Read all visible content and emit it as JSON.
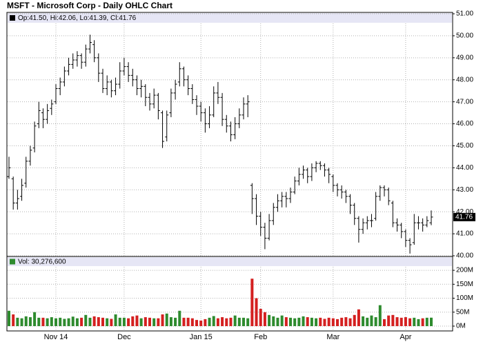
{
  "chart_data": {
    "type": "ohlc",
    "title": "MSFT - Microsoft Corp - Daily OHLC Chart",
    "legend": "Op:41.50, Hi:42.06, Lo:41.39, Cl:41.76",
    "volume_legend": "Vol: 30,276,600",
    "categories": [
      null,
      null,
      null,
      null,
      null,
      null,
      null,
      null,
      null,
      null,
      null,
      "Nov 14",
      null,
      null,
      null,
      null,
      null,
      null,
      null,
      null,
      null,
      null,
      null,
      null,
      null,
      null,
      null,
      "Dec",
      null,
      null,
      null,
      null,
      null,
      null,
      null,
      null,
      null,
      null,
      null,
      null,
      null,
      null,
      null,
      null,
      null,
      "Jan 15",
      null,
      null,
      null,
      null,
      null,
      null,
      null,
      null,
      null,
      null,
      null,
      null,
      null,
      "Feb",
      null,
      null,
      null,
      null,
      null,
      null,
      null,
      null,
      null,
      null,
      null,
      null,
      null,
      null,
      null,
      null,
      "Mar",
      null,
      null,
      null,
      null,
      null,
      null,
      null,
      null,
      null,
      null,
      null,
      null,
      null,
      null,
      null,
      null,
      "Apr",
      null,
      null,
      null,
      null,
      null,
      null
    ],
    "open": [
      43.6,
      43.5,
      42.4,
      42.7,
      43.3,
      44.3,
      44.9,
      46.0,
      46.5,
      46.2,
      46.7,
      47.0,
      47.6,
      47.9,
      48.4,
      48.7,
      48.9,
      49.1,
      48.8,
      49.4,
      49.6,
      49.0,
      48.3,
      47.6,
      47.9,
      47.5,
      47.8,
      48.4,
      48.6,
      48.2,
      48.0,
      47.6,
      47.7,
      47.2,
      46.9,
      47.3,
      46.5,
      45.4,
      46.5,
      47.4,
      47.9,
      48.5,
      48.0,
      47.6,
      47.1,
      46.8,
      46.5,
      46.0,
      46.4,
      47.4,
      47.2,
      46.2,
      45.9,
      45.5,
      46.0,
      46.4,
      46.9,
      43.2,
      42.6,
      41.8,
      41.3,
      40.8,
      41.6,
      42.2,
      42.5,
      42.7,
      42.6,
      42.9,
      43.4,
      43.7,
      43.9,
      43.6,
      44.0,
      44.2,
      44.1,
      43.9,
      43.6,
      43.2,
      43.0,
      42.9,
      42.7,
      42.3,
      41.7,
      41.2,
      41.5,
      41.6,
      41.7,
      42.7,
      43.1,
      43.0,
      42.4,
      41.5,
      41.4,
      41.1,
      40.7,
      40.6,
      41.5,
      41.5,
      41.4,
      41.5
    ],
    "high": [
      44.5,
      43.6,
      43.0,
      43.5,
      44.5,
      45.0,
      46.1,
      47.0,
      46.7,
      46.9,
      47.1,
      47.8,
      48.1,
      48.6,
      49.0,
      49.2,
      49.3,
      49.2,
      49.6,
      50.05,
      49.8,
      49.2,
      48.5,
      48.2,
      48.0,
      48.1,
      48.8,
      49.0,
      48.8,
      48.5,
      48.2,
      48.0,
      47.8,
      47.4,
      47.6,
      47.4,
      46.6,
      46.6,
      47.6,
      48.0,
      48.8,
      48.6,
      48.2,
      47.8,
      47.3,
      47.0,
      46.7,
      46.8,
      47.7,
      47.9,
      47.4,
      46.4,
      46.1,
      46.3,
      46.7,
      47.2,
      47.3,
      43.3,
      42.8,
      42.0,
      41.5,
      41.9,
      42.4,
      42.8,
      42.9,
      42.9,
      43.1,
      43.6,
      44.0,
      44.1,
      44.0,
      44.2,
      44.3,
      44.3,
      44.2,
      44.0,
      43.7,
      43.3,
      43.2,
      43.0,
      42.8,
      42.4,
      41.8,
      41.7,
      41.8,
      41.9,
      42.9,
      43.2,
      43.2,
      43.1,
      42.5,
      41.7,
      41.5,
      41.2,
      40.8,
      41.9,
      41.8,
      41.7,
      41.8,
      42.06
    ],
    "low": [
      43.5,
      42.1,
      42.1,
      42.5,
      43.1,
      44.1,
      44.7,
      45.8,
      45.8,
      46.0,
      46.4,
      46.9,
      47.3,
      47.7,
      48.2,
      48.5,
      48.6,
      48.5,
      48.6,
      49.2,
      48.8,
      47.9,
      47.4,
      47.3,
      47.2,
      47.3,
      47.6,
      48.2,
      47.9,
      47.7,
      47.3,
      47.2,
      46.8,
      46.6,
      46.7,
      46.2,
      44.9,
      45.2,
      46.3,
      47.1,
      47.7,
      47.7,
      47.3,
      46.9,
      46.4,
      46.1,
      45.6,
      45.8,
      46.3,
      46.9,
      45.9,
      45.6,
      45.2,
      45.3,
      45.8,
      46.2,
      46.3,
      41.9,
      41.4,
      40.9,
      40.3,
      40.7,
      41.4,
      42.0,
      42.2,
      42.2,
      42.4,
      42.8,
      43.2,
      43.5,
      43.3,
      43.4,
      43.8,
      43.9,
      43.6,
      43.3,
      42.9,
      42.7,
      42.6,
      42.4,
      41.9,
      41.4,
      40.6,
      41.0,
      41.2,
      41.3,
      41.6,
      42.5,
      42.7,
      42.3,
      41.3,
      41.1,
      40.8,
      40.4,
      40.1,
      40.5,
      41.2,
      41.1,
      41.3,
      41.39
    ],
    "close": [
      44.0,
      42.4,
      42.6,
      43.2,
      44.3,
      44.8,
      45.9,
      46.6,
      46.2,
      46.6,
      46.9,
      47.6,
      47.9,
      48.4,
      48.7,
      48.9,
      49.1,
      48.8,
      49.4,
      49.7,
      49.0,
      48.3,
      47.6,
      47.9,
      47.5,
      47.8,
      48.4,
      48.6,
      48.2,
      48.0,
      47.6,
      47.7,
      47.2,
      46.9,
      47.3,
      46.6,
      45.2,
      46.4,
      47.4,
      47.8,
      48.5,
      48.0,
      47.6,
      47.1,
      46.8,
      46.5,
      46.0,
      46.4,
      47.4,
      47.2,
      46.2,
      45.9,
      45.5,
      46.0,
      46.4,
      46.9,
      47.0,
      42.6,
      41.8,
      41.3,
      40.8,
      41.6,
      42.2,
      42.5,
      42.7,
      42.6,
      42.9,
      43.4,
      43.7,
      43.9,
      43.6,
      44.0,
      44.2,
      44.1,
      43.9,
      43.7,
      43.2,
      43.0,
      42.9,
      42.7,
      42.3,
      41.7,
      41.2,
      41.5,
      41.6,
      41.6,
      42.7,
      43.1,
      43.0,
      42.5,
      41.5,
      41.4,
      41.1,
      40.7,
      40.5,
      41.5,
      41.5,
      41.4,
      41.6,
      41.76
    ],
    "volume": [
      55,
      42,
      30,
      28,
      35,
      32,
      50,
      30,
      30,
      28,
      32,
      28,
      30,
      26,
      28,
      34,
      28,
      30,
      40,
      30,
      35,
      32,
      30,
      28,
      26,
      42,
      30,
      30,
      28,
      35,
      38,
      28,
      32,
      30,
      28,
      28,
      42,
      45,
      32,
      30,
      55,
      30,
      30,
      28,
      22,
      20,
      25,
      30,
      36,
      28,
      32,
      28,
      30,
      38,
      30,
      30,
      28,
      170,
      100,
      62,
      50,
      40,
      35,
      30,
      38,
      32,
      30,
      28,
      30,
      35,
      32,
      30,
      28,
      30,
      26,
      30,
      28,
      25,
      30,
      32,
      28,
      40,
      60,
      35,
      30,
      38,
      32,
      75,
      25,
      38,
      40,
      32,
      30,
      32,
      28,
      30,
      25,
      28,
      30,
      30.2766
    ],
    "color": "#000000",
    "up_color": "#2e8b2e",
    "down_color": "#d42020",
    "ylim": [
      40,
      51
    ],
    "yticks": [
      {
        "value": 40,
        "label": "40.00"
      },
      {
        "value": 41,
        "label": "41.00"
      },
      {
        "value": 42,
        "label": "42.00"
      },
      {
        "value": 43,
        "label": "43.00"
      },
      {
        "value": 44,
        "label": "44.00"
      },
      {
        "value": 45,
        "label": "45.00"
      },
      {
        "value": 46,
        "label": "46.00"
      },
      {
        "value": 47,
        "label": "47.00"
      },
      {
        "value": 48,
        "label": "48.00"
      },
      {
        "value": 49,
        "label": "49.00"
      },
      {
        "value": 50,
        "label": "50.00"
      },
      {
        "value": 51,
        "label": "51.00"
      }
    ],
    "volume_ylim": [
      0,
      215
    ],
    "volume_yticks": [
      {
        "value": 0,
        "label": "0M"
      },
      {
        "value": 50,
        "label": "50M"
      },
      {
        "value": 100,
        "label": "100M"
      },
      {
        "value": 150,
        "label": "150M"
      },
      {
        "value": 200,
        "label": "200M"
      }
    ],
    "grid": true
  }
}
